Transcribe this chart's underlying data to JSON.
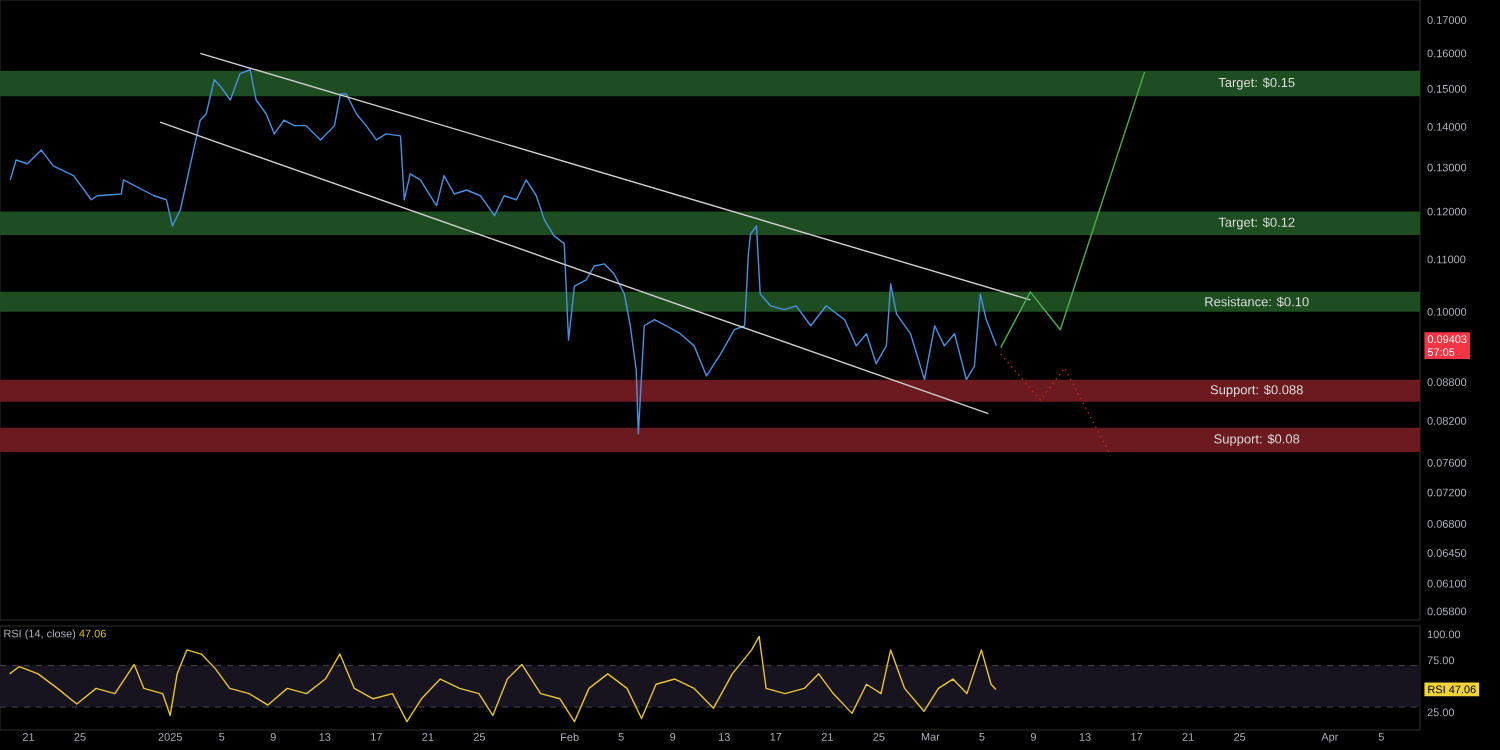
{
  "chart_data": [
    {
      "type": "line",
      "log": true,
      "tick_labels": "y",
      "xlim": [
        "2024-12-18T19:00",
        "2025-04-08T00:00"
      ],
      "ylim": [
        0.0571,
        0.1763
      ],
      "yticks": [
        {
          "value": 0.17,
          "label": "0.17000"
        },
        {
          "value": 0.16,
          "label": "0.16000"
        },
        {
          "value": 0.15,
          "label": "0.15000"
        },
        {
          "value": 0.14,
          "label": "0.14000"
        },
        {
          "value": 0.13,
          "label": "0.13000"
        },
        {
          "value": 0.12,
          "label": "0.12000"
        },
        {
          "value": 0.11,
          "label": "0.11000"
        },
        {
          "value": 0.1,
          "label": "0.10000"
        },
        {
          "value": 0.088,
          "label": "0.08800"
        },
        {
          "value": 0.082,
          "label": "0.08200"
        },
        {
          "value": 0.076,
          "label": "0.07600"
        },
        {
          "value": 0.072,
          "label": "0.07200"
        },
        {
          "value": 0.068,
          "label": "0.06800"
        },
        {
          "value": 0.0645,
          "label": "0.06450"
        },
        {
          "value": 0.061,
          "label": "0.06100"
        },
        {
          "value": 0.058,
          "label": "0.05800"
        }
      ],
      "bands": [
        {
          "axis": "y",
          "from": 0.148,
          "to": 0.155,
          "label": "Target: $0.15",
          "color": "#1f4d22"
        },
        {
          "axis": "y",
          "from": 0.115,
          "to": 0.12,
          "label": "Target: $0.12",
          "color": "#1f4d22"
        },
        {
          "axis": "y",
          "from": 0.1,
          "to": 0.1037,
          "label": "Resistance: $0.10",
          "color": "#1f4d22"
        },
        {
          "axis": "y",
          "from": 0.0849,
          "to": 0.0884,
          "label": "Support: $0.088",
          "color": "#6b1a1f"
        },
        {
          "axis": "y",
          "from": 0.0775,
          "to": 0.081,
          "label": "Support: $0.08",
          "color": "#6b1a1f"
        }
      ],
      "series": [
        {
          "color": "#4a90e2",
          "x": [
            "2024-12-19T14:00",
            "2024-12-20T01:00",
            "2024-12-20T22:00",
            "2024-12-22T00:00",
            "2024-12-22T22:00",
            "2024-12-24T12:00",
            "2024-12-25T21:00",
            "2024-12-26T08:00",
            "2024-12-28T05:00",
            "2024-12-28T09:00",
            "2024-12-30T18:00",
            "2024-12-31T17:00",
            "2025-01-01T04:00",
            "2025-01-01T19:00",
            "2025-01-02T13:00",
            "2025-01-03T08:00",
            "2025-01-03T19:00",
            "2025-01-04T10:00",
            "2025-01-04T21:00",
            "2025-01-05T16:00",
            "2025-01-06T10:00",
            "2025-01-07T05:00",
            "2025-01-07T16:00",
            "2025-01-08T11:00",
            "2025-01-09T02:00",
            "2025-01-09T20:00",
            "2025-01-10T15:00",
            "2025-01-11T13:00",
            "2025-01-12T16:00",
            "2025-01-13T18:00",
            "2025-01-14T05:00",
            "2025-01-14T16:00",
            "2025-01-15T11:00",
            "2025-01-16T05:00",
            "2025-01-17T00:00",
            "2025-01-17T18:00",
            "2025-01-18T21:00",
            "2025-01-19T04:00",
            "2025-01-19T15:00",
            "2025-01-20T10:00",
            "2025-01-21T16:00",
            "2025-01-22T06:00",
            "2025-01-23T01:00",
            "2025-01-24T00:00",
            "2025-01-25T02:00",
            "2025-01-26T04:00",
            "2025-01-26T22:00",
            "2025-01-27T21:00",
            "2025-01-28T15:00",
            "2025-01-29T10:00",
            "2025-01-30T01:00",
            "2025-01-30T19:00",
            "2025-01-31T14:00",
            "2025-01-31T22:00",
            "2025-02-01T09:00",
            "2025-02-02T07:00",
            "2025-02-02T22:00",
            "2025-02-03T17:00",
            "2025-02-04T11:00",
            "2025-02-05T06:00",
            "2025-02-05T17:00",
            "2025-02-06T04:00",
            "2025-02-06T08:00",
            "2025-02-06T19:00",
            "2025-02-07T14:00",
            "2025-02-08T12:00",
            "2025-02-09T14:00",
            "2025-02-10T16:00",
            "2025-02-11T15:00",
            "2025-02-12T17:00",
            "2025-02-13T19:00",
            "2025-02-14T14:00",
            "2025-02-14T21:00",
            "2025-02-15T01:00",
            "2025-02-15T12:00",
            "2025-02-15T19:00",
            "2025-02-16T14:00",
            "2025-02-17T16:00",
            "2025-02-18T14:00",
            "2025-02-19T17:00",
            "2025-02-20T22:00",
            "2025-02-22T08:00",
            "2025-02-23T06:00",
            "2025-02-24T01:00",
            "2025-02-24T19:00",
            "2025-02-25T14:00",
            "2025-02-25T22:00",
            "2025-02-26T09:00",
            "2025-02-27T11:00",
            "2025-02-28T13:00",
            "2025-03-01T08:00",
            "2025-03-02T02:00",
            "2025-03-02T21:00",
            "2025-03-03T19:00",
            "2025-03-04T10:00",
            "2025-03-04T21:00",
            "2025-03-05T08:00",
            "2025-03-06T03:00"
          ],
          "values": [
            0.1271,
            0.1318,
            0.1309,
            0.1342,
            0.1304,
            0.1281,
            0.1226,
            0.1235,
            0.1239,
            0.1271,
            0.1235,
            0.1226,
            0.1169,
            0.1204,
            0.1304,
            0.1417,
            0.1433,
            0.1525,
            0.1508,
            0.147,
            0.1542,
            0.1553,
            0.147,
            0.1433,
            0.1382,
            0.1417,
            0.1403,
            0.1403,
            0.1367,
            0.1403,
            0.1486,
            0.1486,
            0.1433,
            0.1403,
            0.1367,
            0.1382,
            0.1377,
            0.1226,
            0.1285,
            0.1271,
            0.1213,
            0.1281,
            0.1239,
            0.1248,
            0.1235,
            0.1191,
            0.1235,
            0.1226,
            0.1271,
            0.1235,
            0.1182,
            0.1148,
            0.1132,
            0.095,
            0.1048,
            0.106,
            0.1087,
            0.1091,
            0.1071,
            0.1033,
            0.0975,
            0.09,
            0.0801,
            0.0975,
            0.0986,
            0.0975,
            0.0961,
            0.094,
            0.089,
            0.0926,
            0.0968,
            0.0975,
            0.1111,
            0.1152,
            0.1169,
            0.1033,
            0.1011,
            0.1004,
            0.1011,
            0.0975,
            0.1011,
            0.0986,
            0.094,
            0.0961,
            0.091,
            0.094,
            0.1052,
            0.0996,
            0.0961,
            0.0884,
            0.0975,
            0.094,
            0.0961,
            0.0884,
            0.0906,
            0.1033,
            0.0986,
            0.094
          ]
        },
        {
          "color": "#d0d0d0",
          "x": [
            "2025-01-03T08:00",
            "2025-03-08T18:00"
          ],
          "values": [
            0.16,
            0.1022
          ]
        },
        {
          "color": "#d0d0d0",
          "x": [
            "2024-12-31T05:00",
            "2025-03-05T12:00"
          ],
          "values": [
            0.1412,
            0.0831
          ]
        },
        {
          "color": "#4caf50",
          "x": [
            "2025-03-06T11:00",
            "2025-03-08T18:00",
            "2025-03-11T02:00",
            "2025-03-17T15:00"
          ],
          "values": [
            0.0937,
            0.1037,
            0.0968,
            0.1547
          ]
        },
        {
          "color": "#c62828",
          "line_style": "dotted",
          "x": [
            "2025-03-06T11:00",
            "2025-03-09T13:00",
            "2025-03-11T10:00",
            "2025-03-15T00:00"
          ],
          "values": [
            0.0926,
            0.0852,
            0.0903,
            0.077
          ]
        }
      ],
      "annotations": [
        {
          "text": "0.09403",
          "y": 0.09403
        },
        "57:05"
      ]
    },
    {
      "type": "line",
      "title": "RSI (14, close)",
      "subtitle": "47.06",
      "xlim": [
        "2024-12-18T19:00",
        "2025-04-08T00:00"
      ],
      "xticks": [
        {
          "value": "2024-12-21",
          "label": "21"
        },
        {
          "value": "2024-12-25",
          "label": "25"
        },
        {
          "value": "2025-01-01",
          "label": "2025"
        },
        {
          "value": "2025-01-05",
          "label": "5"
        },
        {
          "value": "2025-01-09",
          "label": "9"
        },
        {
          "value": "2025-01-13",
          "label": "13"
        },
        {
          "value": "2025-01-17",
          "label": "17"
        },
        {
          "value": "2025-01-21",
          "label": "21"
        },
        {
          "value": "2025-01-25",
          "label": "25"
        },
        {
          "value": "2025-02-01",
          "label": "Feb"
        },
        {
          "value": "2025-02-05",
          "label": "5"
        },
        {
          "value": "2025-02-09",
          "label": "9"
        },
        {
          "value": "2025-02-13",
          "label": "13"
        },
        {
          "value": "2025-02-17",
          "label": "17"
        },
        {
          "value": "2025-02-21",
          "label": "21"
        },
        {
          "value": "2025-02-25",
          "label": "25"
        },
        {
          "value": "2025-03-01",
          "label": "Mar"
        },
        {
          "value": "2025-03-05",
          "label": "5"
        },
        {
          "value": "2025-03-09",
          "label": "9"
        },
        {
          "value": "2025-03-13",
          "label": "13"
        },
        {
          "value": "2025-03-17",
          "label": "17"
        },
        {
          "value": "2025-03-21",
          "label": "21"
        },
        {
          "value": "2025-03-25",
          "label": "25"
        },
        {
          "value": "2025-04-01",
          "label": "Apr"
        },
        {
          "value": "2025-04-05",
          "label": "5"
        }
      ],
      "ylim": [
        8,
        108
      ],
      "yticks": [
        {
          "value": 25,
          "label": "25.00"
        },
        {
          "value": 75,
          "label": "75.00"
        },
        {
          "value": 100,
          "label": "100.00"
        }
      ],
      "bands": [
        {
          "axis": "y",
          "from": 30,
          "to": 70,
          "color": "#17131f"
        }
      ],
      "ref_lines": [
        {
          "axis": "y",
          "value": 70,
          "color": "#555555",
          "line_style": "dashed"
        },
        {
          "axis": "y",
          "value": 30,
          "color": "#555555",
          "line_style": "dashed"
        }
      ],
      "series": [
        {
          "color": "#e8c530",
          "x": [
            "2024-12-19T13:00",
            "2024-12-20T07:00",
            "2024-12-21T18:00",
            "2024-12-23T06:00",
            "2024-12-24T18:00",
            "2024-12-26T06:00",
            "2024-12-27T17:00",
            "2024-12-29T05:00",
            "2024-12-29T23:00",
            "2024-12-31T10:00",
            "2025-01-01T00:00",
            "2025-01-01T13:00",
            "2025-01-02T07:00",
            "2025-01-03T10:00",
            "2025-01-04T12:00",
            "2025-01-05T15:00",
            "2025-01-07T03:00",
            "2025-01-08T14:00",
            "2025-01-10T02:00",
            "2025-01-11T14:00",
            "2025-01-13T01:00",
            "2025-01-14T04:00",
            "2025-01-15T07:00",
            "2025-01-16T18:00",
            "2025-01-18T06:00",
            "2025-01-19T09:00",
            "2025-01-20T12:00",
            "2025-01-21T23:00",
            "2025-01-23T11:00",
            "2025-01-24T23:00",
            "2025-01-26T01:00",
            "2025-01-27T04:00",
            "2025-01-28T07:00",
            "2025-01-29T18:00",
            "2025-01-31T06:00",
            "2025-02-01T09:00",
            "2025-02-02T12:00",
            "2025-02-03T23:00",
            "2025-02-05T11:00",
            "2025-02-06T14:00",
            "2025-02-07T17:00",
            "2025-02-09T04:00",
            "2025-02-10T16:00",
            "2025-02-12T04:00",
            "2025-02-13T15:00",
            "2025-02-15T03:00",
            "2025-02-15T17:00",
            "2025-02-16T06:00",
            "2025-02-17T17:00",
            "2025-02-19T05:00",
            "2025-02-20T08:00",
            "2025-02-21T11:00",
            "2025-02-22T22:00",
            "2025-02-24T01:00",
            "2025-02-25T04:00",
            "2025-02-25T22:00",
            "2025-02-27T00:00",
            "2025-02-28T12:00",
            "2025-03-01T15:00",
            "2025-03-02T18:00",
            "2025-03-03T20:00",
            "2025-03-04T23:00",
            "2025-03-05T17:00",
            "2025-03-06T02:00"
          ],
          "values": [
            62,
            69,
            62,
            48,
            33,
            48,
            43,
            71,
            48,
            43,
            22,
            62,
            85,
            81,
            67,
            48,
            43,
            32,
            48,
            43,
            57,
            81,
            48,
            38,
            43,
            16,
            38,
            57,
            48,
            43,
            22,
            57,
            71,
            43,
            38,
            16,
            48,
            62,
            48,
            19,
            52,
            57,
            48,
            29,
            62,
            85,
            98,
            48,
            43,
            48,
            62,
            43,
            24,
            52,
            43,
            85,
            48,
            26,
            48,
            57,
            43,
            85,
            52,
            47
          ]
        }
      ],
      "annotations": [
        "RSI",
        "47.06"
      ]
    }
  ]
}
